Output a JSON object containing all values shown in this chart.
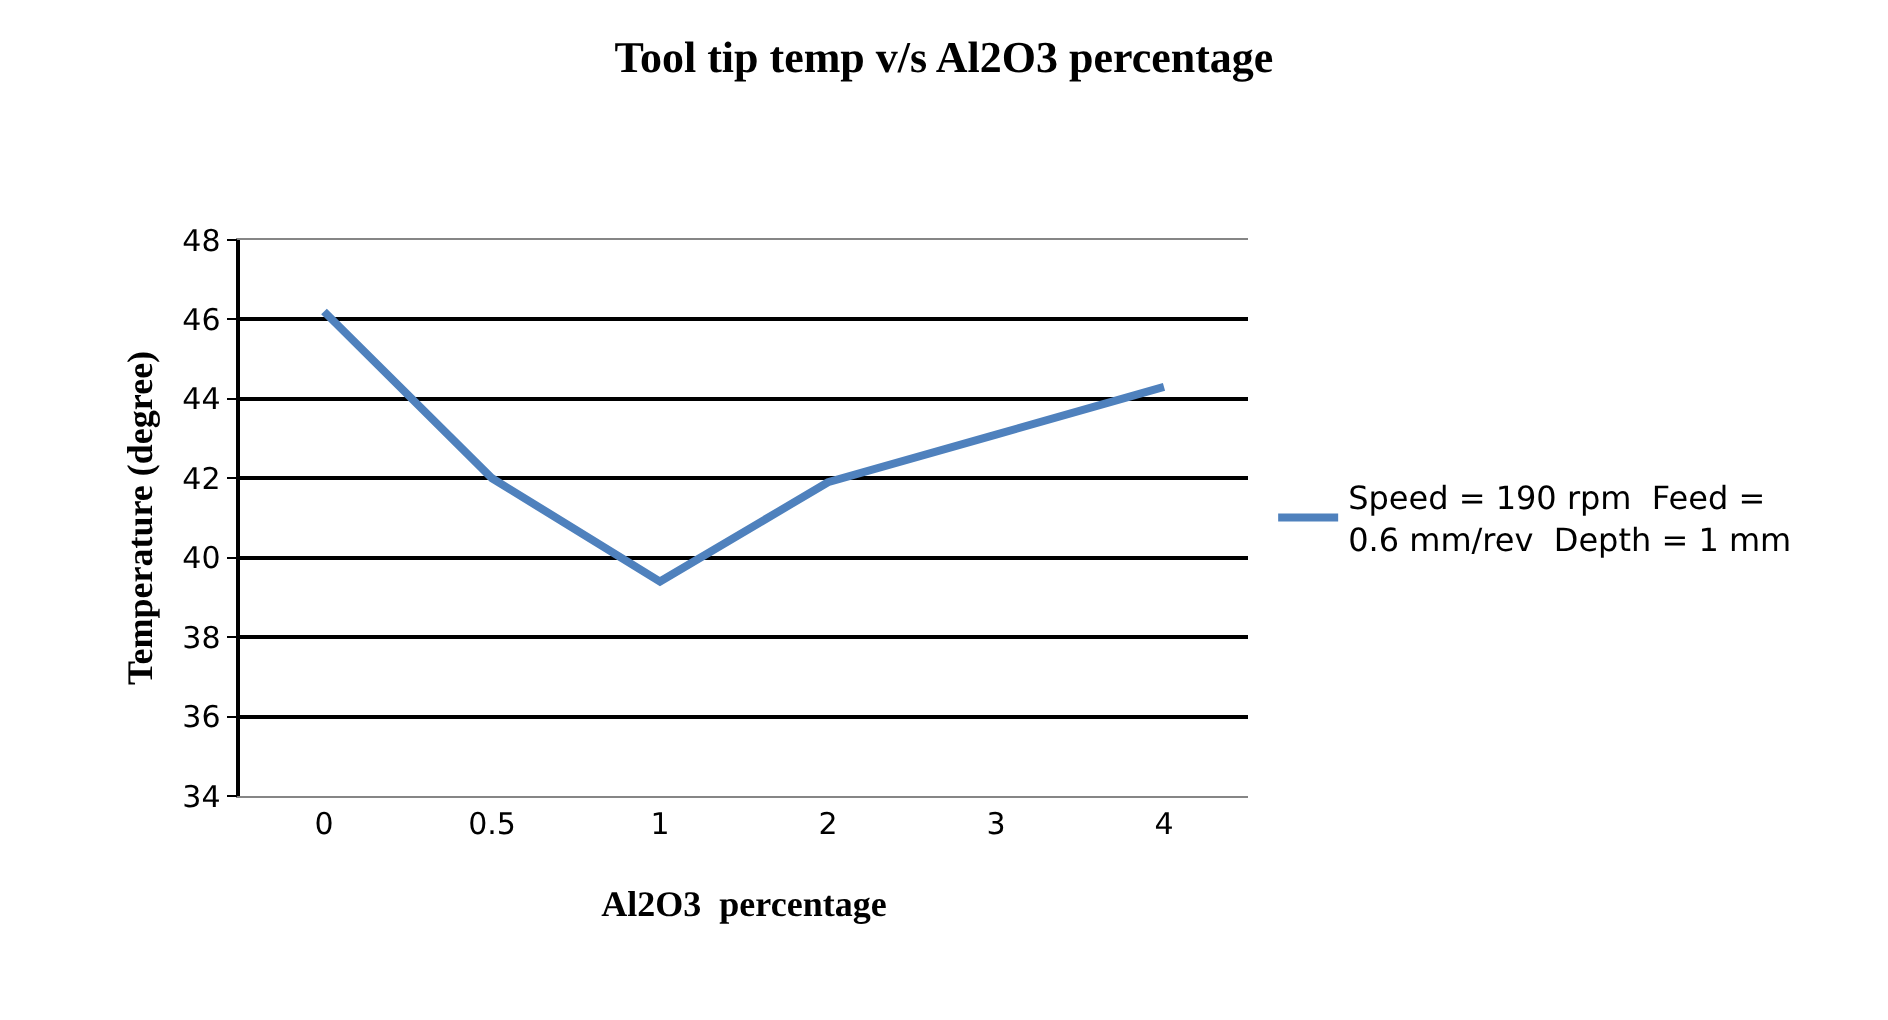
{
  "chart_data": {
    "type": "line",
    "title": "Tool tip temp v/s Al2O3 percentage",
    "xlabel": "Al2O3  percentage",
    "ylabel": "Temperature (degree)",
    "categories": [
      "0",
      "0.5",
      "1",
      "2",
      "3",
      "4"
    ],
    "series": [
      {
        "name": "Speed = 190 rpm  Feed = 0.6 mm/rev  Depth = 1 mm",
        "color": "#4f81bd",
        "values": [
          46.2,
          42.0,
          39.4,
          41.9,
          43.1,
          44.3
        ]
      }
    ],
    "ylim": [
      34,
      48
    ],
    "yticks": [
      34,
      36,
      38,
      40,
      42,
      44,
      46,
      48
    ],
    "grid": "y",
    "legend": "right",
    "marker": "none",
    "line_style": "solid"
  }
}
